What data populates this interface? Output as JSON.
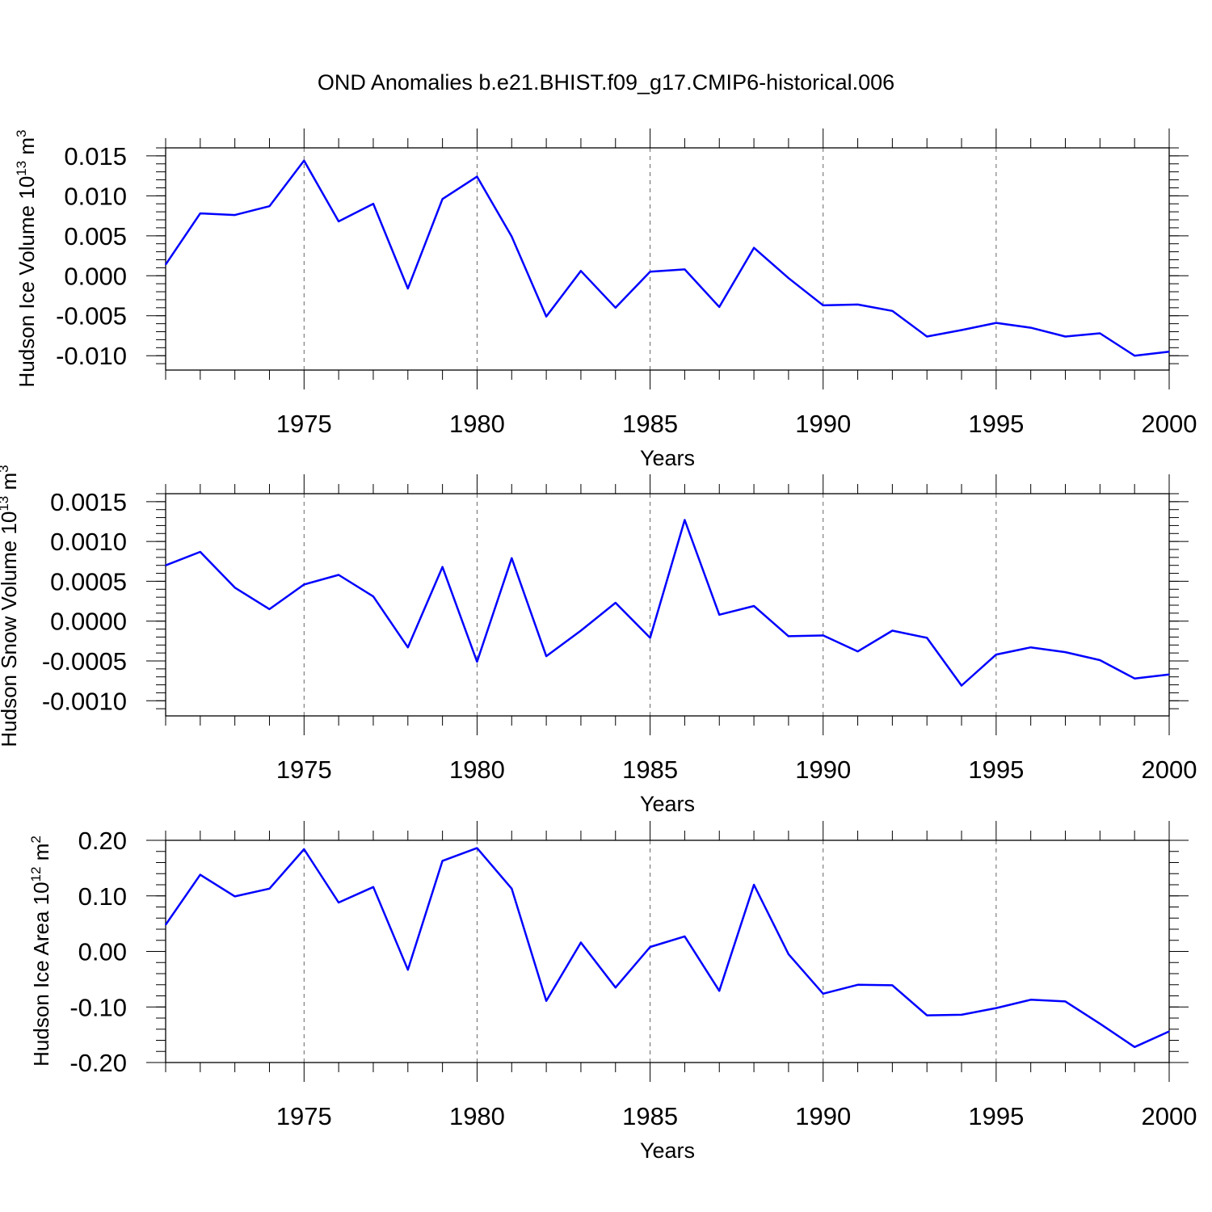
{
  "title": "OND Anomalies b.e21.BHIST.f09_g17.CMIP6-historical.006",
  "chart_data": [
    {
      "type": "line",
      "ylabel": "Hudson Ice Volume 10",
      "ylabel_sup": "13",
      "ylabel_unit": " m",
      "ylabel_unit_sup": "3",
      "xlabel": "Years",
      "xlim": [
        1971,
        2000
      ],
      "ylim": [
        -0.0118,
        0.016
      ],
      "xticks": [
        1975,
        1980,
        1985,
        1990,
        1995,
        2000
      ],
      "yticks": [
        0.015,
        0.01,
        0.005,
        0.0,
        -0.005,
        -0.01
      ],
      "ytick_labels": [
        "0.015",
        "0.010",
        "0.005",
        "0.000",
        "-0.005",
        "-0.010"
      ],
      "grid": "vertical dashed at major x ticks",
      "color": "#0000ff",
      "x": [
        1971,
        1972,
        1973,
        1974,
        1975,
        1976,
        1977,
        1978,
        1979,
        1980,
        1981,
        1982,
        1983,
        1984,
        1985,
        1986,
        1987,
        1988,
        1989,
        1990,
        1991,
        1992,
        1993,
        1994,
        1995,
        1996,
        1997,
        1998,
        1999,
        2000
      ],
      "y": [
        0.0014,
        0.0078,
        0.0076,
        0.0087,
        0.0144,
        0.0068,
        0.009,
        -0.0016,
        0.0096,
        0.0124,
        0.0049,
        -0.0051,
        0.0006,
        -0.004,
        0.0005,
        0.0008,
        -0.0039,
        0.0035,
        -0.0003,
        -0.0037,
        -0.0036,
        -0.0044,
        -0.0076,
        -0.0068,
        -0.0059,
        -0.0065,
        -0.0076,
        -0.0072,
        -0.01,
        -0.0095
      ]
    },
    {
      "type": "line",
      "ylabel": "Hudson Snow Volume 10",
      "ylabel_sup": "13",
      "ylabel_unit": " m",
      "ylabel_unit_sup": "3",
      "xlabel": "Years",
      "xlim": [
        1971,
        2000
      ],
      "ylim": [
        -0.00119,
        0.0016
      ],
      "xticks": [
        1975,
        1980,
        1985,
        1990,
        1995,
        2000
      ],
      "yticks": [
        0.0015,
        0.001,
        0.0005,
        0.0,
        -0.0005,
        -0.001
      ],
      "ytick_labels": [
        "0.0015",
        "0.0010",
        "0.0005",
        "0.0000",
        "-0.0005",
        "-0.0010"
      ],
      "grid": "vertical dashed at major x ticks",
      "color": "#0000ff",
      "x": [
        1971,
        1972,
        1973,
        1974,
        1975,
        1976,
        1977,
        1978,
        1979,
        1980,
        1981,
        1982,
        1983,
        1984,
        1985,
        1986,
        1987,
        1988,
        1989,
        1990,
        1991,
        1992,
        1993,
        1994,
        1995,
        1996,
        1997,
        1998,
        1999,
        2000
      ],
      "y": [
        0.0007,
        0.00087,
        0.00042,
        0.00015,
        0.00046,
        0.00058,
        0.00031,
        -0.00033,
        0.00068,
        -0.00051,
        0.00079,
        -0.00044,
        -0.00012,
        0.00023,
        -0.00021,
        0.00127,
        8e-05,
        0.00019,
        -0.00019,
        -0.00018,
        -0.00038,
        -0.00012,
        -0.00021,
        -0.00081,
        -0.00042,
        -0.00033,
        -0.00039,
        -0.00049,
        -0.00072,
        -0.00067
      ]
    },
    {
      "type": "line",
      "ylabel": "Hudson Ice Area 10",
      "ylabel_sup": "12",
      "ylabel_unit": " m",
      "ylabel_unit_sup": "2",
      "xlabel": "Years",
      "xlim": [
        1971,
        2000
      ],
      "ylim": [
        -0.2,
        0.2
      ],
      "xticks": [
        1975,
        1980,
        1985,
        1990,
        1995,
        2000
      ],
      "yticks": [
        0.2,
        0.1,
        0.0,
        -0.1,
        -0.2
      ],
      "ytick_labels": [
        "0.20",
        "0.10",
        "0.00",
        "-0.10",
        "-0.20"
      ],
      "grid": "vertical dashed at major x ticks",
      "color": "#0000ff",
      "x": [
        1971,
        1972,
        1973,
        1974,
        1975,
        1976,
        1977,
        1978,
        1979,
        1980,
        1981,
        1982,
        1983,
        1984,
        1985,
        1986,
        1987,
        1988,
        1989,
        1990,
        1991,
        1992,
        1993,
        1994,
        1995,
        1996,
        1997,
        1998,
        1999,
        2000
      ],
      "y": [
        0.048,
        0.138,
        0.099,
        0.113,
        0.184,
        0.088,
        0.116,
        -0.033,
        0.163,
        0.186,
        0.113,
        -0.089,
        0.016,
        -0.065,
        0.008,
        0.027,
        -0.071,
        0.12,
        -0.005,
        -0.076,
        -0.06,
        -0.061,
        -0.115,
        -0.114,
        -0.102,
        -0.087,
        -0.09,
        -0.13,
        -0.172,
        -0.144
      ]
    }
  ]
}
